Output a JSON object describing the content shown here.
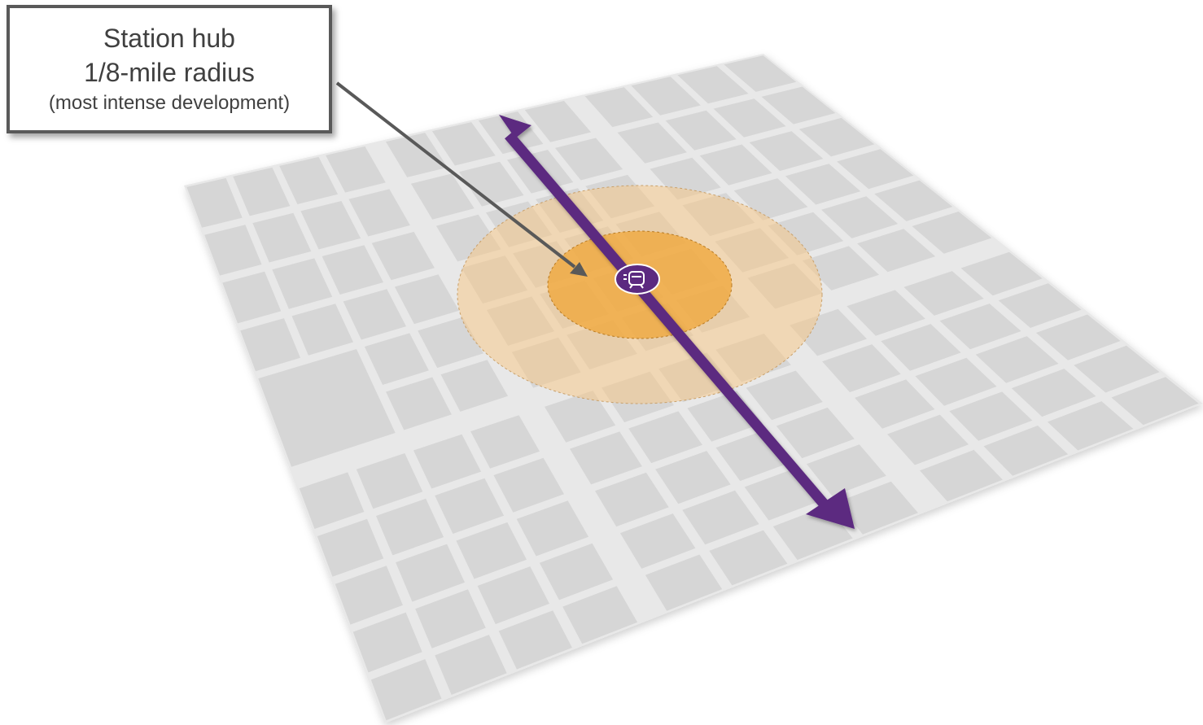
{
  "callout": {
    "title": "Station hub",
    "radius": "1/8-mile radius",
    "note": "(most intense development)"
  },
  "colors": {
    "street": "#e8e8e8",
    "block": "#d6d6d6",
    "inner_zone": "#f0a537",
    "outer_zone": "#f5c98a",
    "transit_line": "#5c2a80",
    "callout_border": "#595959",
    "callout_text": "#404040"
  },
  "icons": {
    "station": "train-icon",
    "line_ends": "double-arrow"
  }
}
